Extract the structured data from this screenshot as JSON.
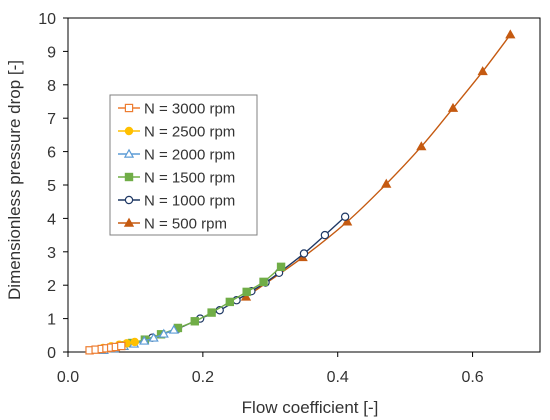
{
  "chart_data": {
    "type": "line",
    "title": "",
    "xlabel": "Flow coefficient [-]",
    "ylabel": "Dimensionless pressure drop [-]",
    "xlim": [
      0.0,
      0.7
    ],
    "ylim": [
      0,
      10
    ],
    "x_ticks": [
      0.0,
      0.2,
      0.4,
      0.6
    ],
    "x_tick_labels": [
      "0.0",
      "0.2",
      "0.4",
      "0.6"
    ],
    "y_ticks": [
      0,
      1,
      2,
      3,
      4,
      5,
      6,
      7,
      8,
      9,
      10
    ],
    "y_tick_labels": [
      "0",
      "1",
      "2",
      "3",
      "4",
      "5",
      "6",
      "7",
      "8",
      "9",
      "10"
    ],
    "grid": false,
    "legend_position": "left",
    "series": [
      {
        "name": "N = 3000 rpm",
        "color": "#ED7D31",
        "marker": "square-open",
        "x": [
          0.032,
          0.041,
          0.05,
          0.057,
          0.064,
          0.071,
          0.079
        ],
        "y": [
          0.05,
          0.07,
          0.09,
          0.11,
          0.13,
          0.15,
          0.18
        ]
      },
      {
        "name": "N = 2500 rpm",
        "color": "#FFC000",
        "marker": "circle",
        "x": [
          0.052,
          0.064,
          0.076,
          0.087,
          0.099
        ],
        "y": [
          0.12,
          0.17,
          0.22,
          0.26,
          0.3
        ]
      },
      {
        "name": "N = 2000 rpm",
        "color": "#5B9BD5",
        "marker": "triangle-open",
        "x": [
          0.053,
          0.068,
          0.083,
          0.098,
          0.113,
          0.127,
          0.142,
          0.157
        ],
        "y": [
          0.05,
          0.1,
          0.17,
          0.24,
          0.33,
          0.42,
          0.54,
          0.66
        ]
      },
      {
        "name": "N = 1500 rpm",
        "color": "#70AD47",
        "marker": "square",
        "x": [
          0.079,
          0.095,
          0.114,
          0.138,
          0.163,
          0.188,
          0.213,
          0.24,
          0.265,
          0.29,
          0.316
        ],
        "y": [
          0.2,
          0.27,
          0.37,
          0.53,
          0.72,
          0.92,
          1.18,
          1.5,
          1.8,
          2.1,
          2.55
        ]
      },
      {
        "name": "N = 1000 rpm",
        "color": "#1F3864",
        "marker": "circle-open",
        "x": [
          0.125,
          0.163,
          0.196,
          0.225,
          0.25,
          0.272,
          0.293,
          0.313,
          0.35,
          0.381,
          0.411
        ],
        "y": [
          0.43,
          0.7,
          1.0,
          1.25,
          1.55,
          1.82,
          2.08,
          2.37,
          2.95,
          3.5,
          4.05
        ]
      },
      {
        "name": "N = 500 rpm",
        "color": "#C55A11",
        "marker": "triangle",
        "x": [
          0.264,
          0.348,
          0.414,
          0.472,
          0.524,
          0.571,
          0.615,
          0.656
        ],
        "y": [
          1.65,
          2.83,
          3.9,
          5.03,
          6.15,
          7.3,
          8.4,
          9.5
        ]
      }
    ]
  }
}
